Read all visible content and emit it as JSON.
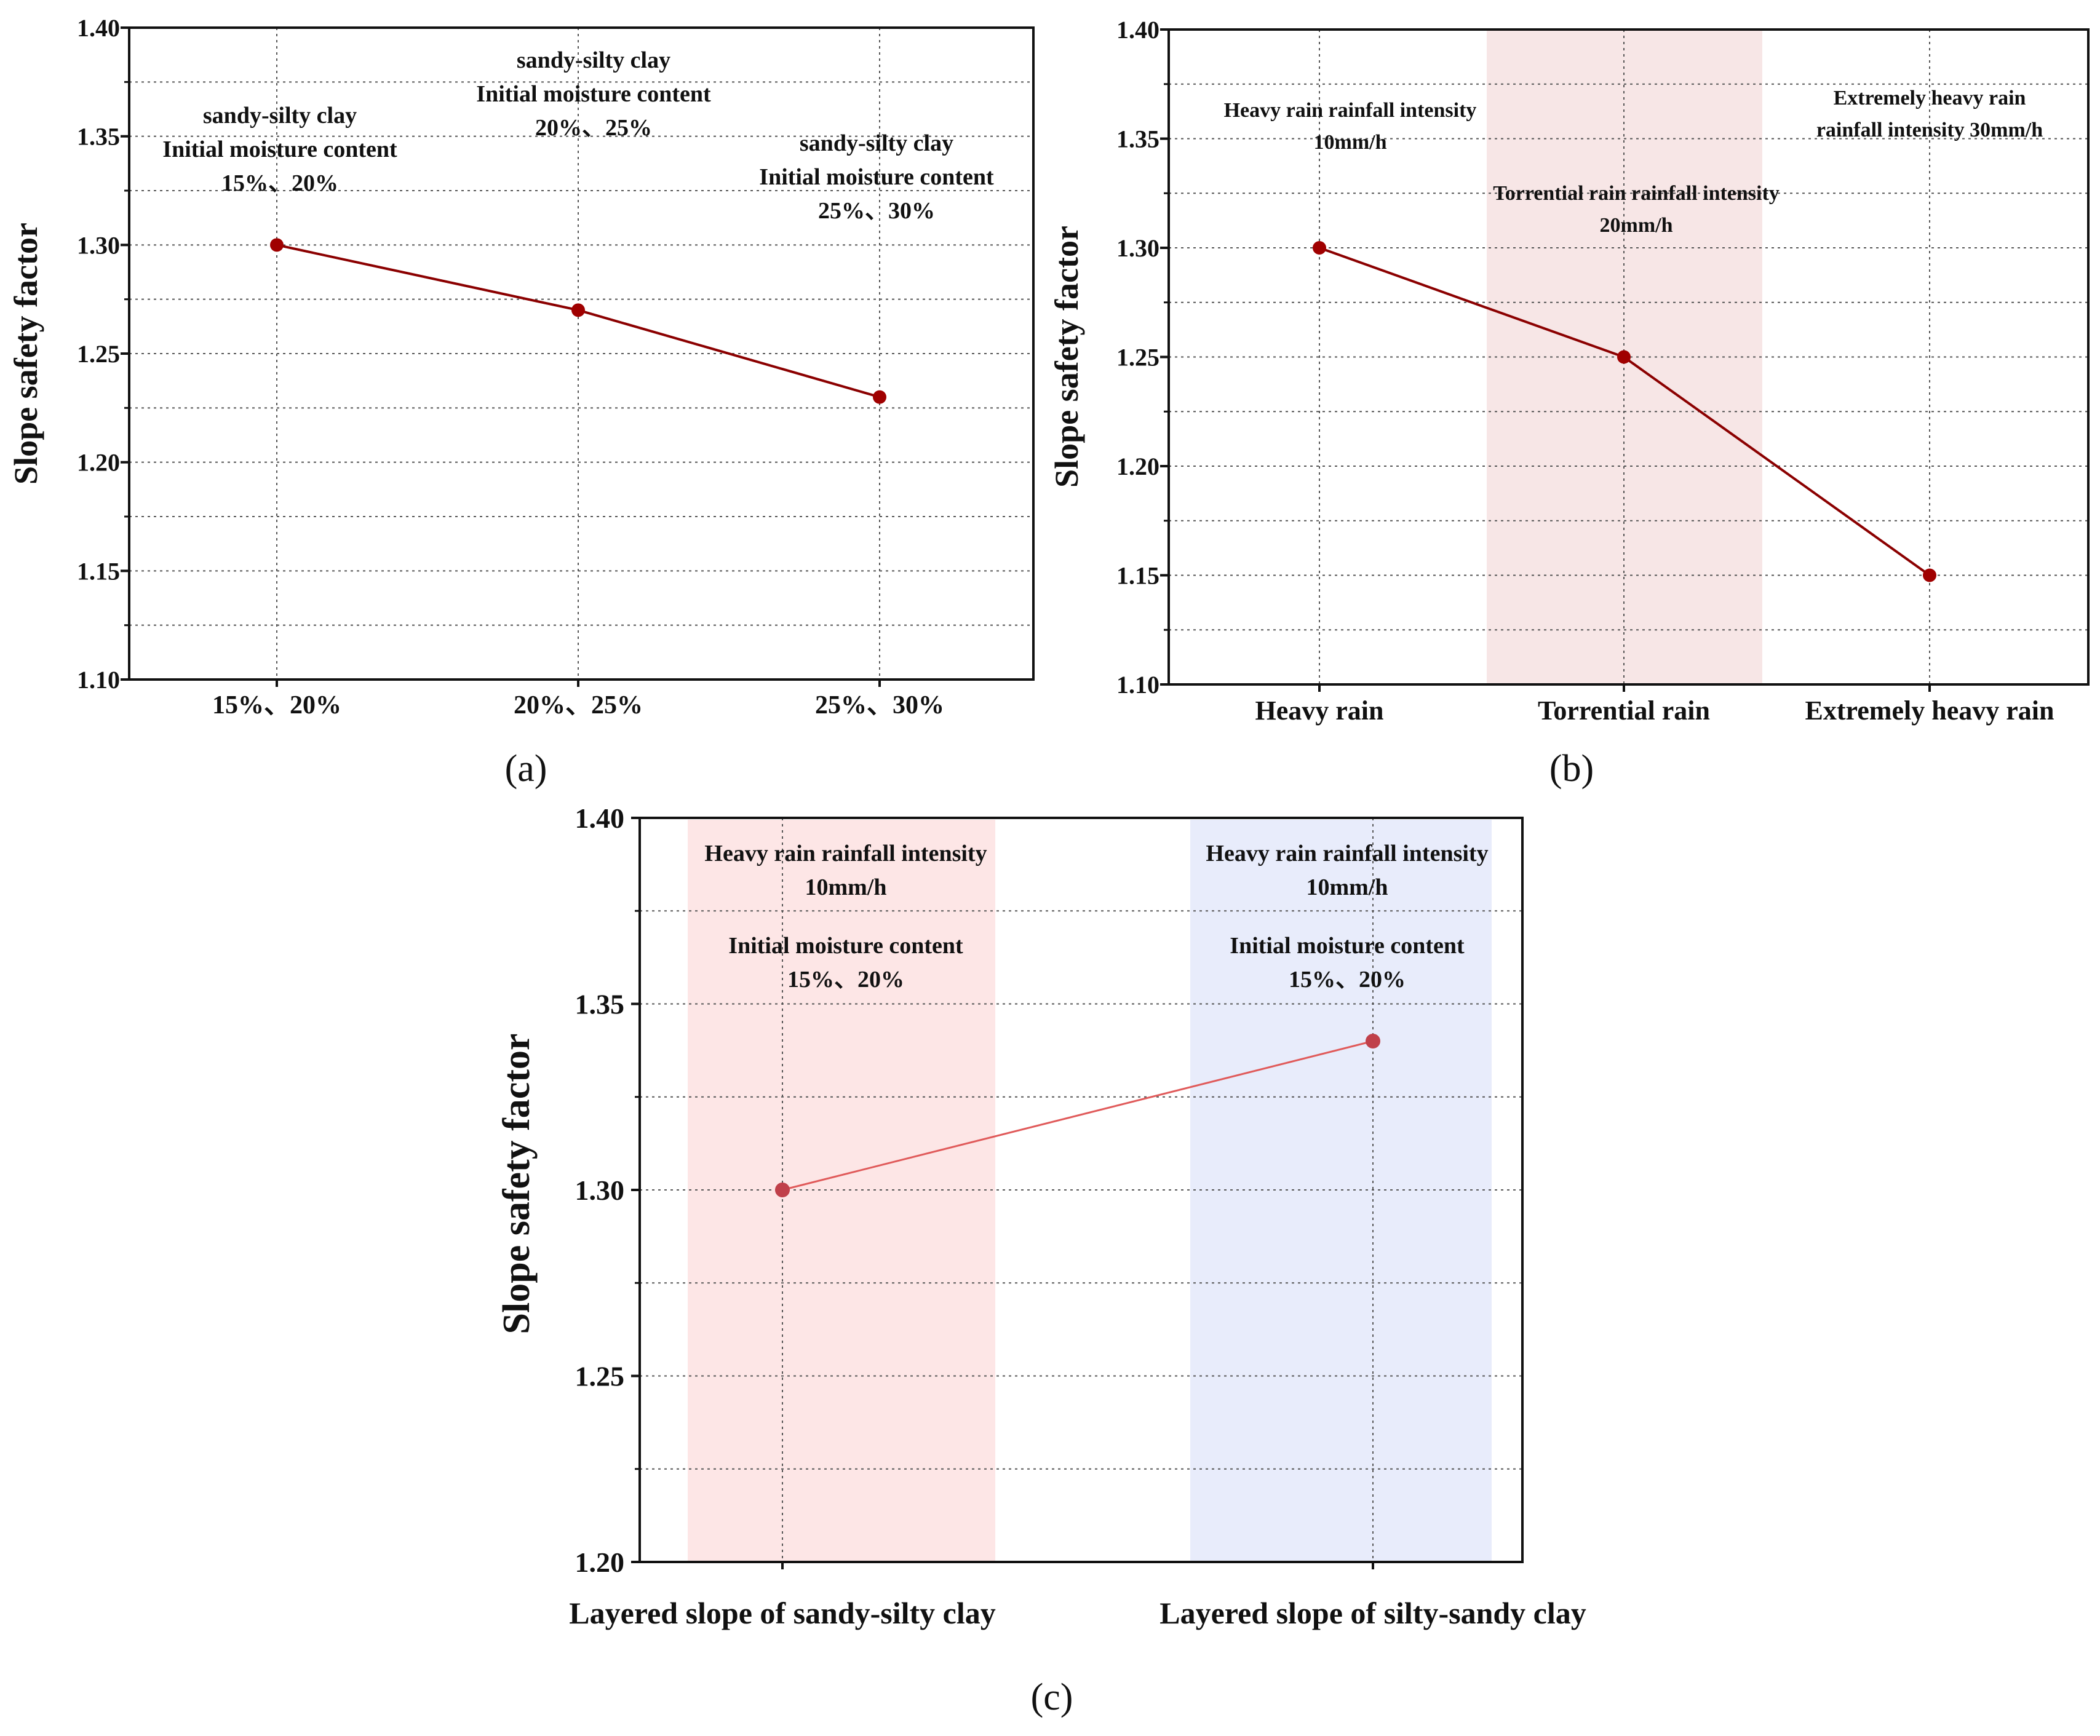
{
  "chart_data": [
    {
      "id": "a",
      "type": "line",
      "caption": "(a)",
      "categories": [
        "15%、20%",
        "20%、25%",
        "25%、30%"
      ],
      "series": [
        {
          "name": "Slope safety factor",
          "values": [
            1.3,
            1.27,
            1.23
          ]
        }
      ],
      "ylabel": "Slope safety factor",
      "ylim": [
        1.1,
        1.4
      ],
      "yticks": [
        "1.10",
        "1.15",
        "1.20",
        "1.25",
        "1.30",
        "1.35",
        "1.40"
      ],
      "grid": true,
      "annotations": [
        {
          "lines": [
            "sandy-silty clay",
            "Initial moisture content",
            "15%、20%"
          ]
        },
        {
          "lines": [
            "sandy-silty clay",
            "Initial moisture content",
            "20%、25%"
          ]
        },
        {
          "lines": [
            "sandy-silty clay",
            "Initial moisture content",
            "25%、30%"
          ]
        }
      ],
      "colors": {
        "line": "#8b0000",
        "marker": "#a00000"
      }
    },
    {
      "id": "b",
      "type": "line",
      "caption": "(b)",
      "categories": [
        "Heavy rain",
        "Torrential rain",
        "Extremely heavy rain"
      ],
      "series": [
        {
          "name": "Slope safety factor",
          "values": [
            1.3,
            1.25,
            1.15
          ]
        }
      ],
      "ylabel": "Slope safety factor",
      "ylim": [
        1.1,
        1.4
      ],
      "yticks": [
        "1.10",
        "1.15",
        "1.20",
        "1.25",
        "1.30",
        "1.35",
        "1.40"
      ],
      "grid": true,
      "annotations": [
        {
          "lines": [
            "Heavy rain rainfall intensity",
            "10mm/h"
          ]
        },
        {
          "lines": [
            "Torrential rain rainfall intensity",
            "20mm/h"
          ]
        },
        {
          "lines": [
            "Extremely heavy rain",
            "rainfall intensity 30mm/h"
          ]
        }
      ],
      "colors": {
        "line": "#8b0000",
        "marker": "#a00000",
        "band": "#f7e6e6"
      }
    },
    {
      "id": "c",
      "type": "line",
      "caption": "(c)",
      "categories": [
        "Layered slope of sandy-silty clay",
        "Layered slope of silty-sandy clay"
      ],
      "series": [
        {
          "name": "Slope safety factor",
          "values": [
            1.3,
            1.34
          ]
        }
      ],
      "ylabel": "Slope safety factor",
      "ylim": [
        1.2,
        1.4
      ],
      "yticks": [
        "1.20",
        "1.25",
        "1.30",
        "1.35",
        "1.40"
      ],
      "grid": true,
      "annotations": [
        {
          "lines": [
            "Heavy rain rainfall intensity",
            "10mm/h",
            "Initial moisture content",
            "15%、20%"
          ]
        },
        {
          "lines": [
            "Heavy rain rainfall intensity",
            "10mm/h",
            "Initial moisture content",
            "15%、20%"
          ]
        }
      ],
      "colors": {
        "line": "#e05a5a",
        "marker": "#c0404a",
        "band1": "#fde6e6",
        "band2": "#e8ecfb"
      }
    }
  ]
}
